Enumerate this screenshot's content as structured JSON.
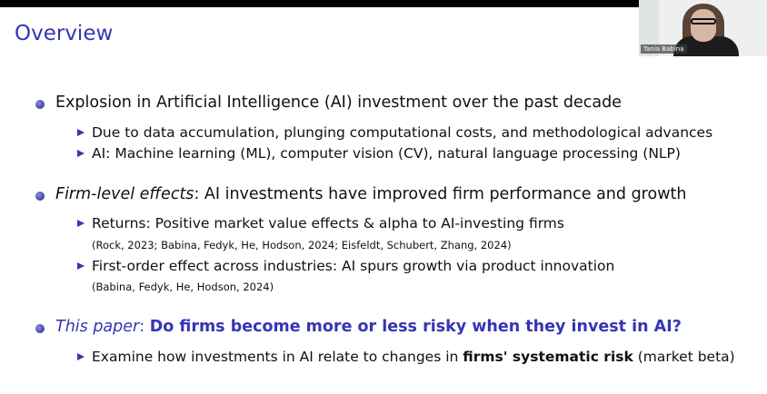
{
  "slide": {
    "title": "Overview",
    "b1": "Explosion in Artificial Intelligence (AI) investment over the past decade",
    "b1s1": "Due to data accumulation, plunging computational costs, and methodological advances",
    "b1s2": "AI: Machine learning (ML), computer vision (CV), natural language processing (NLP)",
    "b2_em": "Firm-level effects",
    "b2_rest": ": AI investments have improved firm performance and growth",
    "b2s1": "Returns: Positive market value effects & alpha to AI-investing firms",
    "b2s1c": "(Rock, 2023; Babina, Fedyk, He, Hodson, 2024; Eisfeldt, Schubert, Zhang, 2024)",
    "b2s2": "First-order effect across industries: AI spurs growth via product innovation",
    "b2s2c": "(Babina, Fedyk, He, Hodson, 2024)",
    "b3_em": "This paper",
    "b3_sep": ": ",
    "b3_bold": "Do firms become more or less risky when they invest in AI?",
    "b3s1_a": "Examine how investments in AI relate to changes in ",
    "b3s1_b": "firms' systematic risk",
    "b3s1_c": " (market beta)"
  },
  "video": {
    "speaker_name": "Tania Babina"
  },
  "colors": {
    "accent": "#3535b5"
  }
}
